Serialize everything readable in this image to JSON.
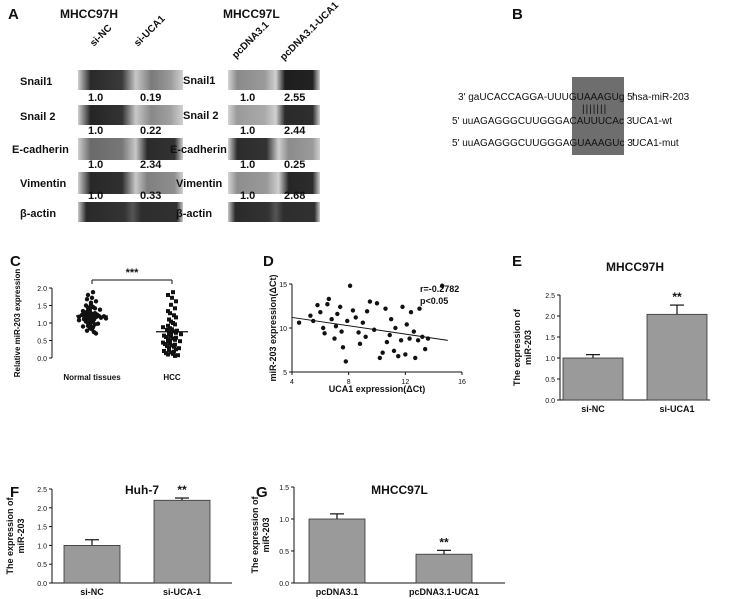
{
  "panelA": {
    "letter": "A",
    "left_title": "MHCC97H",
    "right_title": "MHCC97L",
    "left_lanes": [
      "si-NC",
      "si-UCA1"
    ],
    "right_lanes": [
      "pcDNA3.1",
      "pcDNA3.1-UCA1"
    ],
    "rows": [
      {
        "label": "Snail1",
        "left_values": [
          "1.0",
          "0.19"
        ],
        "right_values": [
          "1.0",
          "2.55"
        ]
      },
      {
        "label": "Snail 2",
        "left_values": [
          "1.0",
          "0.22"
        ],
        "right_values": [
          "1.0",
          "2.44"
        ]
      },
      {
        "label": "E-cadherin",
        "left_values": [
          "1.0",
          "2.34"
        ],
        "right_values": [
          "1.0",
          "0.25"
        ]
      },
      {
        "label": "Vimentin",
        "left_values": [
          "1.0",
          "0.33"
        ],
        "right_values": [
          "1.0",
          "2.68"
        ]
      },
      {
        "label": "β-actin",
        "left_values": [],
        "right_values": []
      }
    ]
  },
  "panelB": {
    "letter": "B",
    "lines": [
      {
        "seq": "3' gaUCACCAGGA-UUUGUAAAGUg 5'",
        "name": "hsa-miR-203"
      },
      {
        "seq": "5' uuAGAGGGCUUGGGACAUUUCAc 3'",
        "name": "UCA1-wt"
      },
      {
        "seq": "5' uuAGAGGGCUUGGGAGUAAAGUc 3'",
        "name": "UCA1-mut"
      }
    ]
  },
  "chart_data": [
    {
      "panel": "C",
      "type": "scatter",
      "title": "",
      "ylabel": "Relative miR-203 expression",
      "xlabel": "",
      "categories": [
        "Normal tissues",
        "HCC"
      ],
      "ylim": [
        0,
        2.0
      ],
      "yticks": [
        "0.0",
        "0.5",
        "1.0",
        "1.5",
        "2.0"
      ],
      "significance": "***",
      "series": [
        {
          "values": [
            1.88,
            1.8,
            1.72,
            1.68,
            1.62,
            1.58,
            1.52,
            1.5,
            1.46,
            1.44,
            1.42,
            1.4,
            1.38,
            1.36,
            1.34,
            1.32,
            1.3,
            1.28,
            1.26,
            1.25,
            1.24,
            1.23,
            1.22,
            1.21,
            1.2,
            1.2,
            1.19,
            1.18,
            1.17,
            1.16,
            1.15,
            1.14,
            1.13,
            1.12,
            1.11,
            1.1,
            1.08,
            1.06,
            1.04,
            1.02,
            1.0,
            0.98,
            0.96,
            0.94,
            0.92,
            0.9,
            0.88,
            0.85,
            0.82,
            0.78,
            0.74,
            0.7
          ],
          "mean": 1.2
        },
        {
          "values": [
            1.88,
            1.8,
            1.72,
            1.62,
            1.52,
            1.42,
            1.34,
            1.28,
            1.22,
            1.16,
            1.1,
            1.04,
            1.0,
            0.96,
            0.92,
            0.88,
            0.85,
            0.82,
            0.8,
            0.78,
            0.76,
            0.74,
            0.72,
            0.7,
            0.68,
            0.66,
            0.64,
            0.62,
            0.6,
            0.58,
            0.56,
            0.54,
            0.52,
            0.5,
            0.48,
            0.46,
            0.44,
            0.42,
            0.4,
            0.38,
            0.36,
            0.34,
            0.32,
            0.3,
            0.28,
            0.25,
            0.22,
            0.2,
            0.18,
            0.16,
            0.14,
            0.12,
            0.1,
            0.08,
            0.06
          ],
          "mean": 0.75
        }
      ]
    },
    {
      "panel": "D",
      "type": "scatter",
      "title": "",
      "xlabel": "UCA1 expression(ΔCt)",
      "ylabel": "miR-203 expression(ΔCt)",
      "xlim": [
        4,
        16
      ],
      "ylim": [
        5,
        15
      ],
      "xticks": [
        "4",
        "8",
        "12",
        "16"
      ],
      "yticks": [
        "5",
        "10",
        "15"
      ],
      "annotation": [
        "r=-0.2782",
        "p<0.05"
      ],
      "trend_line": {
        "x": [
          4,
          15
        ],
        "y": [
          11.2,
          8.6
        ]
      },
      "points": [
        [
          4.5,
          10.6
        ],
        [
          5.3,
          11.4
        ],
        [
          5.5,
          10.8
        ],
        [
          5.8,
          12.6
        ],
        [
          6.0,
          11.8
        ],
        [
          6.2,
          10.0
        ],
        [
          6.3,
          9.4
        ],
        [
          6.5,
          12.7
        ],
        [
          6.6,
          13.3
        ],
        [
          6.8,
          11.0
        ],
        [
          7.0,
          8.8
        ],
        [
          7.1,
          10.2
        ],
        [
          7.2,
          11.6
        ],
        [
          7.4,
          12.4
        ],
        [
          7.5,
          9.6
        ],
        [
          7.6,
          7.8
        ],
        [
          7.8,
          6.2
        ],
        [
          7.9,
          10.8
        ],
        [
          8.1,
          14.8
        ],
        [
          8.3,
          12.0
        ],
        [
          8.5,
          11.2
        ],
        [
          8.7,
          9.5
        ],
        [
          8.8,
          8.2
        ],
        [
          9.0,
          10.6
        ],
        [
          9.2,
          9.0
        ],
        [
          9.3,
          11.9
        ],
        [
          9.5,
          13.0
        ],
        [
          9.8,
          9.8
        ],
        [
          10.0,
          12.8
        ],
        [
          10.2,
          6.6
        ],
        [
          10.4,
          7.2
        ],
        [
          10.6,
          12.2
        ],
        [
          10.7,
          8.4
        ],
        [
          10.9,
          9.2
        ],
        [
          11.0,
          11.0
        ],
        [
          11.2,
          7.4
        ],
        [
          11.3,
          10.0
        ],
        [
          11.5,
          6.8
        ],
        [
          11.7,
          8.6
        ],
        [
          11.8,
          12.4
        ],
        [
          12.0,
          7.0
        ],
        [
          12.1,
          10.4
        ],
        [
          12.3,
          8.8
        ],
        [
          12.4,
          11.8
        ],
        [
          12.6,
          9.6
        ],
        [
          12.7,
          6.6
        ],
        [
          12.9,
          8.6
        ],
        [
          13.0,
          12.2
        ],
        [
          13.2,
          9.0
        ],
        [
          13.4,
          7.6
        ],
        [
          13.6,
          8.8
        ],
        [
          14.6,
          14.8
        ]
      ]
    },
    {
      "panel": "E",
      "type": "bar",
      "title": "MHCC97H",
      "ylabel": "The expression of miR-203",
      "categories": [
        "si-NC",
        "si-UCA1"
      ],
      "values": [
        1.0,
        2.04
      ],
      "errors": [
        0.08,
        0.22
      ],
      "ylim": [
        0,
        2.5
      ],
      "yticks": [
        "0.0",
        "0.5",
        "1.0",
        "1.5",
        "2.0",
        "2.5"
      ],
      "significance": [
        "",
        "**"
      ]
    },
    {
      "panel": "F",
      "type": "bar",
      "title": "Huh-7",
      "ylabel": "The expression of miR-203",
      "categories": [
        "si-NC",
        "si-UCA-1"
      ],
      "values": [
        1.0,
        2.2
      ],
      "errors": [
        0.15,
        0.06
      ],
      "ylim": [
        0,
        2.5
      ],
      "yticks": [
        "0.0",
        "0.5",
        "1.0",
        "1.5",
        "2.0",
        "2.5"
      ],
      "significance": [
        "",
        "**"
      ]
    },
    {
      "panel": "G",
      "type": "bar",
      "title": "MHCC97L",
      "ylabel": "The expression of miR-203",
      "categories": [
        "pcDNA3.1",
        "pcDNA3.1-UCA1"
      ],
      "values": [
        1.0,
        0.45
      ],
      "errors": [
        0.08,
        0.06
      ],
      "ylim": [
        0,
        1.5
      ],
      "yticks": [
        "0.0",
        "0.5",
        "1.0",
        "1.5"
      ],
      "significance": [
        "",
        "**"
      ]
    }
  ]
}
